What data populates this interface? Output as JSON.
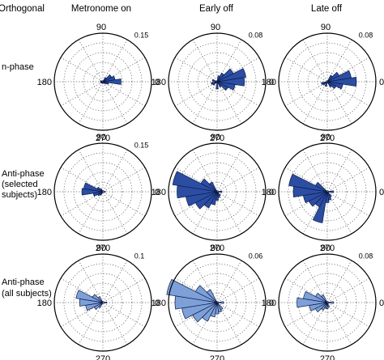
{
  "figure": {
    "corner_label": "Orthogonal",
    "columns": [
      "Metronome on",
      "Early off",
      "Late off"
    ],
    "rows": [
      {
        "lines": [
          "n-phase"
        ]
      },
      {
        "lines": [
          "Anti-phase",
          "(selected",
          "subjects)"
        ]
      },
      {
        "lines": [
          "Anti-phase",
          "(all subjects)"
        ]
      }
    ]
  },
  "chart_data": [
    {
      "type": "polar-histogram",
      "row": 0,
      "col": 0,
      "angle_ticks": [
        "90",
        "180",
        "270",
        "0"
      ],
      "rmax_label": "0.15",
      "rmax": 0.15,
      "fill": "#2b4ea3",
      "grid": true,
      "bins_deg": [
        0,
        18,
        36,
        54,
        342,
        324,
        162,
        198,
        216,
        270
      ],
      "values": [
        0.056,
        0.038,
        0.03,
        0.015,
        0.018,
        0.01,
        0.008,
        0.008,
        0.006,
        0.006
      ]
    },
    {
      "type": "polar-histogram",
      "row": 0,
      "col": 1,
      "angle_ticks": [
        "90",
        "180",
        "270",
        "0"
      ],
      "rmax_label": "0.08",
      "rmax": 0.08,
      "fill": "#2b4ea3",
      "grid": true,
      "bins_deg": [
        0,
        18,
        36,
        54,
        342,
        324,
        306,
        162,
        198,
        216,
        270,
        72
      ],
      "values": [
        0.045,
        0.048,
        0.03,
        0.016,
        0.03,
        0.02,
        0.01,
        0.008,
        0.01,
        0.008,
        0.012,
        0.01
      ]
    },
    {
      "type": "polar-histogram",
      "row": 0,
      "col": 2,
      "angle_ticks": [
        "90",
        "180",
        "270",
        "0"
      ],
      "rmax_label": "0.08",
      "rmax": 0.08,
      "fill": "#2b4ea3",
      "grid": true,
      "bins_deg": [
        0,
        18,
        36,
        54,
        342,
        324,
        306,
        198,
        216,
        252
      ],
      "values": [
        0.048,
        0.04,
        0.022,
        0.012,
        0.026,
        0.016,
        0.01,
        0.01,
        0.008,
        0.008
      ]
    },
    {
      "type": "polar-histogram",
      "row": 1,
      "col": 0,
      "angle_ticks": [
        "90",
        "180",
        "270",
        "0"
      ],
      "rmax_label": "0.15",
      "rmax": 0.15,
      "fill": "#2b4ea3",
      "grid": true,
      "bins_deg": [
        180,
        162,
        198,
        144,
        216,
        234,
        0,
        126
      ],
      "values": [
        0.065,
        0.06,
        0.03,
        0.02,
        0.018,
        0.012,
        0.008,
        0.01
      ]
    },
    {
      "type": "polar-histogram",
      "row": 1,
      "col": 1,
      "angle_ticks": [
        "90",
        "180",
        "270",
        "0"
      ],
      "rmax_label": "",
      "rmax": 0.08,
      "fill": "#2b4ea3",
      "grid": true,
      "bins_deg": [
        162,
        180,
        198,
        216,
        234,
        252,
        144,
        126,
        270,
        288,
        306,
        0
      ],
      "values": [
        0.074,
        0.066,
        0.052,
        0.04,
        0.03,
        0.022,
        0.03,
        0.018,
        0.014,
        0.01,
        0.008,
        0.008
      ]
    },
    {
      "type": "polar-histogram",
      "row": 1,
      "col": 2,
      "angle_ticks": [
        "90",
        "180",
        "270",
        "0"
      ],
      "rmax_label": "",
      "rmax": 0.08,
      "fill": "#2b4ea3",
      "grid": true,
      "bins_deg": [
        162,
        180,
        198,
        216,
        234,
        252,
        144,
        270,
        288,
        306,
        0
      ],
      "values": [
        0.064,
        0.056,
        0.04,
        0.034,
        0.028,
        0.052,
        0.022,
        0.018,
        0.014,
        0.01,
        0.01
      ]
    },
    {
      "type": "polar-histogram",
      "row": 2,
      "col": 0,
      "angle_ticks": [
        "90",
        "180",
        "270",
        "0"
      ],
      "rmax_label": "0.1",
      "rmax": 0.1,
      "fill": "#7da0d8",
      "grid": true,
      "bins_deg": [
        162,
        180,
        198,
        216,
        144,
        126,
        234,
        0
      ],
      "values": [
        0.056,
        0.048,
        0.036,
        0.02,
        0.024,
        0.014,
        0.012,
        0.008
      ]
    },
    {
      "type": "polar-histogram",
      "row": 2,
      "col": 1,
      "angle_ticks": [
        "90",
        "180",
        "270",
        "0"
      ],
      "rmax_label": "0.06",
      "rmax": 0.06,
      "fill": "#7da0d8",
      "grid": true,
      "bins_deg": [
        162,
        180,
        198,
        216,
        234,
        144,
        126,
        252,
        270,
        288,
        306,
        0
      ],
      "values": [
        0.063,
        0.052,
        0.044,
        0.034,
        0.026,
        0.03,
        0.018,
        0.018,
        0.014,
        0.012,
        0.01,
        0.008
      ]
    },
    {
      "type": "polar-histogram",
      "row": 2,
      "col": 2,
      "angle_ticks": [
        "90",
        "180",
        "270",
        "0"
      ],
      "rmax_label": "0.08",
      "rmax": 0.08,
      "fill": "#7da0d8",
      "grid": true,
      "bins_deg": [
        162,
        180,
        198,
        216,
        144,
        126,
        234,
        252,
        270,
        288,
        0
      ],
      "values": [
        0.04,
        0.05,
        0.03,
        0.022,
        0.022,
        0.014,
        0.014,
        0.01,
        0.01,
        0.008,
        0.01
      ]
    }
  ]
}
